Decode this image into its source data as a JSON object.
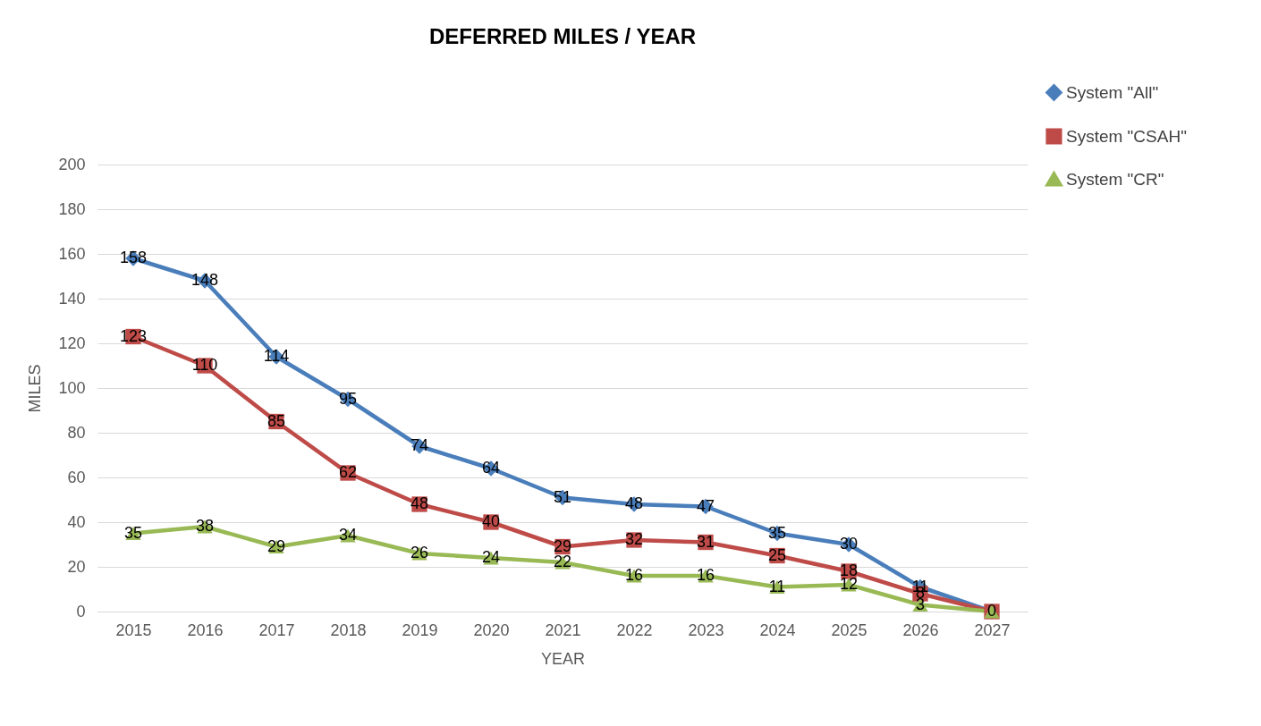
{
  "chart_data": {
    "type": "line",
    "title": "DEFERRED MILES / YEAR",
    "xlabel": "YEAR",
    "ylabel": "MILES",
    "categories": [
      "2015",
      "2016",
      "2017",
      "2018",
      "2019",
      "2020",
      "2021",
      "2022",
      "2023",
      "2024",
      "2025",
      "2026",
      "2027"
    ],
    "series": [
      {
        "name": "System \"All\"",
        "color": "#4a7ebb",
        "marker": "diamond",
        "values": [
          158,
          148,
          114,
          95,
          74,
          64,
          51,
          48,
          47,
          35,
          30,
          11,
          0
        ],
        "value_labels": [
          "158",
          "148",
          "114",
          "95",
          "74",
          "64",
          "51",
          "48",
          "47",
          "35",
          "30",
          "11",
          "0"
        ]
      },
      {
        "name": "System \"CSAH\"",
        "color": "#be4b48",
        "marker": "square",
        "values": [
          123,
          110,
          85,
          62,
          48,
          40,
          29,
          32,
          31,
          25,
          18,
          8,
          0
        ],
        "value_labels": [
          "123",
          "110",
          "85",
          "62",
          "48",
          "40",
          "29",
          "32",
          "31",
          "25",
          "18",
          "8",
          null
        ]
      },
      {
        "name": "System \"CR\"",
        "color": "#98b954",
        "marker": "triangle",
        "values": [
          35,
          38,
          29,
          34,
          26,
          24,
          22,
          16,
          16,
          11,
          12,
          3,
          0
        ],
        "value_labels": [
          "35",
          "38",
          "29",
          "34",
          "26",
          "24",
          "22",
          "16",
          "16",
          "11",
          "12",
          "3",
          null
        ]
      }
    ],
    "ylim": [
      0,
      200
    ],
    "yticks": [
      0,
      20,
      40,
      60,
      80,
      100,
      120,
      140,
      160,
      180,
      200
    ],
    "grid": "y",
    "legend": "top right",
    "line_style": "solid"
  }
}
